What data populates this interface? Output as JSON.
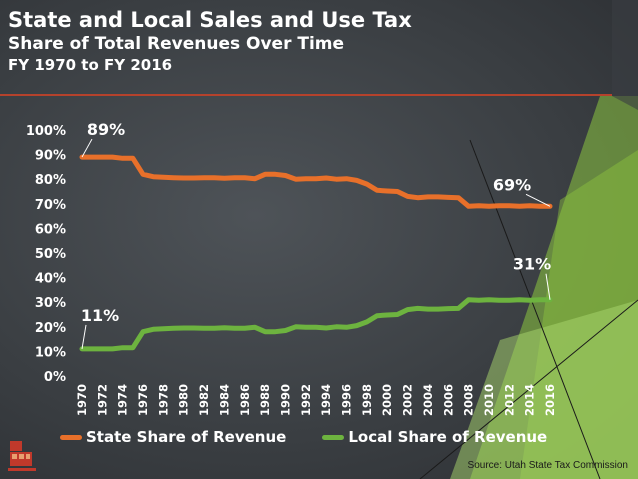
{
  "title": "State and Local Sales and Use Tax",
  "subtitle": "Share of Total Revenues Over Time",
  "period": "FY 1970 to FY 2016",
  "source": "Source: Utah State Tax Commission",
  "colors": {
    "state": "#e8702a",
    "local": "#6db33f",
    "background": "#3e4246",
    "accent": "#b5422c",
    "decor_green": "#8dc63f"
  },
  "chart_data": {
    "type": "line",
    "title": "State and Local Sales and Use Tax",
    "xlabel": "",
    "ylabel": "",
    "ylim": [
      0,
      100
    ],
    "yticks": [
      "0%",
      "10%",
      "20%",
      "30%",
      "40%",
      "50%",
      "60%",
      "70%",
      "80%",
      "90%",
      "100%"
    ],
    "xticks": [
      "1970",
      "1972",
      "1974",
      "1976",
      "1978",
      "1980",
      "1982",
      "1984",
      "1986",
      "1988",
      "1990",
      "1992",
      "1994",
      "1996",
      "1998",
      "2000",
      "2002",
      "2004",
      "2006",
      "2008",
      "2010",
      "2012",
      "2014",
      "2016"
    ],
    "x": [
      1970,
      1971,
      1972,
      1973,
      1974,
      1975,
      1976,
      1977,
      1978,
      1979,
      1980,
      1981,
      1982,
      1983,
      1984,
      1985,
      1986,
      1987,
      1988,
      1989,
      1990,
      1991,
      1992,
      1993,
      1994,
      1995,
      1996,
      1997,
      1998,
      1999,
      2000,
      2001,
      2002,
      2003,
      2004,
      2005,
      2006,
      2007,
      2008,
      2009,
      2010,
      2011,
      2012,
      2013,
      2014,
      2015,
      2016
    ],
    "series": [
      {
        "name": "State Share of Revenue",
        "color": "#e8702a",
        "values": [
          89,
          89,
          89,
          89,
          88.5,
          88.5,
          82,
          81,
          80.8,
          80.6,
          80.5,
          80.5,
          80.6,
          80.6,
          80.4,
          80.6,
          80.6,
          80.2,
          82,
          82,
          81.5,
          80,
          80.2,
          80.2,
          80.5,
          80,
          80.2,
          79.5,
          78,
          75.5,
          75.2,
          75,
          73,
          72.5,
          72.8,
          72.8,
          72.6,
          72.5,
          69,
          69.2,
          69,
          69.2,
          69.2,
          69,
          69.2,
          69,
          69
        ]
      },
      {
        "name": "Local Share of Revenue",
        "color": "#6db33f",
        "values": [
          11,
          11,
          11,
          11,
          11.5,
          11.5,
          18,
          19,
          19.2,
          19.4,
          19.5,
          19.5,
          19.4,
          19.4,
          19.6,
          19.4,
          19.4,
          19.8,
          18,
          18,
          18.5,
          20,
          19.8,
          19.8,
          19.5,
          20,
          19.8,
          20.5,
          22,
          24.5,
          24.8,
          25,
          27,
          27.5,
          27.2,
          27.2,
          27.4,
          27.5,
          31,
          30.8,
          31,
          30.8,
          30.8,
          31,
          30.8,
          31,
          31
        ]
      }
    ],
    "annotations": [
      {
        "text": "89%",
        "series": 0,
        "x": 1970
      },
      {
        "text": "11%",
        "series": 1,
        "x": 1970
      },
      {
        "text": "69%",
        "series": 0,
        "x": 2016
      },
      {
        "text": "31%",
        "series": 1,
        "x": 2016
      }
    ],
    "legend": "bottom",
    "grid": false
  }
}
